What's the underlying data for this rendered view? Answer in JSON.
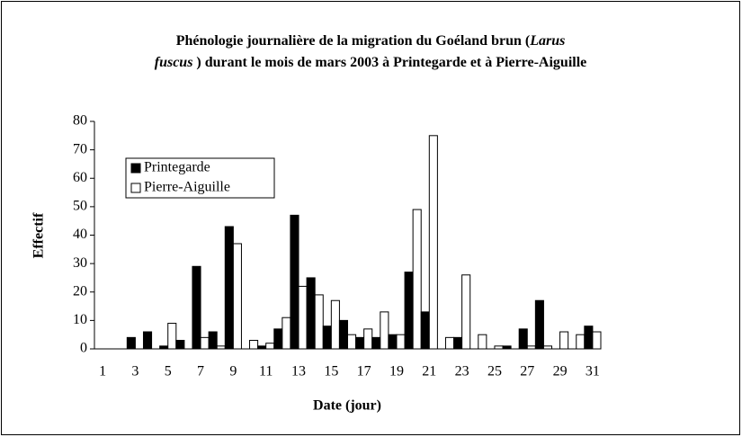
{
  "chart_data": {
    "type": "bar",
    "title": [
      "Phénologie journalière de la migration du Goéland brun (",
      "Larus",
      "fuscus",
      " ) durant le mois de mars 2003 à Printegarde et à Pierre-Aiguille"
    ],
    "x_label": "Date (jour)",
    "y_label": "Effectif",
    "categories": [
      "1",
      null,
      "3",
      null,
      "5",
      null,
      "7",
      null,
      "9",
      null,
      "11",
      null,
      "13",
      null,
      "15",
      null,
      "17",
      null,
      "19",
      null,
      "21",
      null,
      "23",
      null,
      "25",
      null,
      "27",
      null,
      "29",
      null,
      "31"
    ],
    "series": [
      {
        "name": "Printegarde",
        "color": "#000000",
        "values": [
          0,
          0,
          4,
          6,
          1,
          3,
          29,
          6,
          43,
          0,
          1,
          7,
          47,
          25,
          8,
          10,
          4,
          4,
          5,
          27,
          13,
          0,
          4,
          0,
          0,
          1,
          7,
          17,
          0,
          0,
          8
        ]
      },
      {
        "name": "Pierre-Aiguille",
        "color": "#ffffff",
        "values": [
          0,
          0,
          0,
          0,
          9,
          0,
          4,
          1,
          37,
          3,
          2,
          11,
          22,
          19,
          17,
          5,
          7,
          13,
          5,
          49,
          75,
          4,
          26,
          5,
          1,
          0,
          1,
          1,
          6,
          5,
          6
        ]
      }
    ],
    "ylim": [
      0,
      80
    ],
    "yticks": [
      0,
      10,
      20,
      30,
      40,
      50,
      60,
      70,
      80
    ],
    "legend": "upper left"
  }
}
